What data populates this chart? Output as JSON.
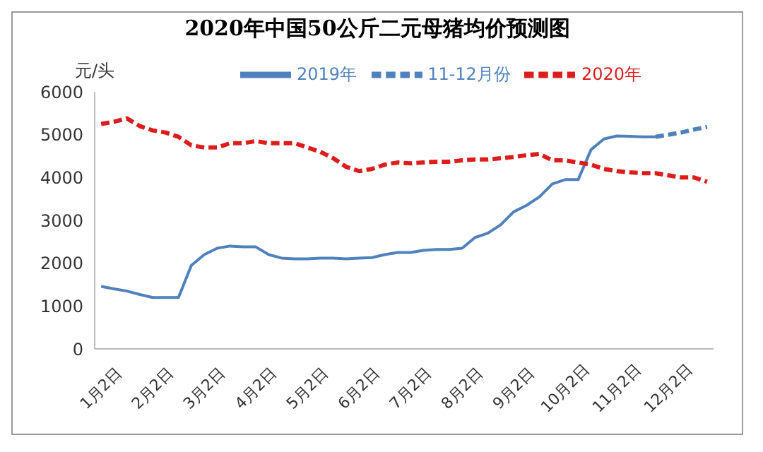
{
  "chart_data": {
    "type": "line",
    "title": "2020年中国50公斤二元母猪均价预测图",
    "ylabel": "元/头",
    "categories": [
      "1月2日",
      null,
      null,
      null,
      "2月2日",
      null,
      null,
      null,
      "3月2日",
      null,
      null,
      null,
      "4月2日",
      null,
      null,
      null,
      "5月2日",
      null,
      null,
      null,
      "6月2日",
      null,
      null,
      null,
      "7月2日",
      null,
      null,
      null,
      "8月2日",
      null,
      null,
      null,
      "9月2日",
      null,
      null,
      null,
      "10月2日",
      null,
      null,
      null,
      "11月2日",
      null,
      null,
      null,
      "12月2日",
      null,
      null,
      null
    ],
    "series": [
      {
        "name": "2019年",
        "color": "#4f81bd",
        "line_style": "solid",
        "values": [
          1460,
          1400,
          1350,
          1270,
          1200,
          1200,
          1200,
          1950,
          2200,
          2350,
          2400,
          2380,
          2380,
          2200,
          2120,
          2100,
          2100,
          2120,
          2120,
          2100,
          2120,
          2130,
          2200,
          2250,
          2250,
          2300,
          2320,
          2320,
          2350,
          2600,
          2700,
          2900,
          3200,
          3350,
          3550,
          3850,
          3950,
          3950,
          4650,
          4900,
          4970,
          4960,
          4950,
          4950,
          null,
          null,
          null,
          null
        ]
      },
      {
        "name": "11-12月份",
        "color": "#4f81bd",
        "line_style": "dashed",
        "values": [
          null,
          null,
          null,
          null,
          null,
          null,
          null,
          null,
          null,
          null,
          null,
          null,
          null,
          null,
          null,
          null,
          null,
          null,
          null,
          null,
          null,
          null,
          null,
          null,
          null,
          null,
          null,
          null,
          null,
          null,
          null,
          null,
          null,
          null,
          null,
          null,
          null,
          null,
          null,
          null,
          null,
          null,
          null,
          4950,
          5000,
          5050,
          5120,
          5180
        ]
      },
      {
        "name": "2020年",
        "color": "#dd1c1c",
        "line_style": "dashed",
        "values": [
          5250,
          5300,
          5380,
          5200,
          5100,
          5050,
          4950,
          4750,
          4700,
          4700,
          4800,
          4800,
          4850,
          4800,
          4800,
          4800,
          4700,
          4600,
          4450,
          4250,
          4150,
          4200,
          4300,
          4350,
          4330,
          4350,
          4370,
          4370,
          4400,
          4420,
          4420,
          4450,
          4480,
          4520,
          4550,
          4400,
          4400,
          4350,
          4300,
          4200,
          4150,
          4120,
          4100,
          4100,
          4050,
          4000,
          4000,
          3900
        ]
      }
    ],
    "ylim": [
      0,
      6000
    ],
    "yticks": [
      0,
      1000,
      2000,
      3000,
      4000,
      5000,
      6000
    ],
    "grid": false,
    "legend": "top"
  }
}
